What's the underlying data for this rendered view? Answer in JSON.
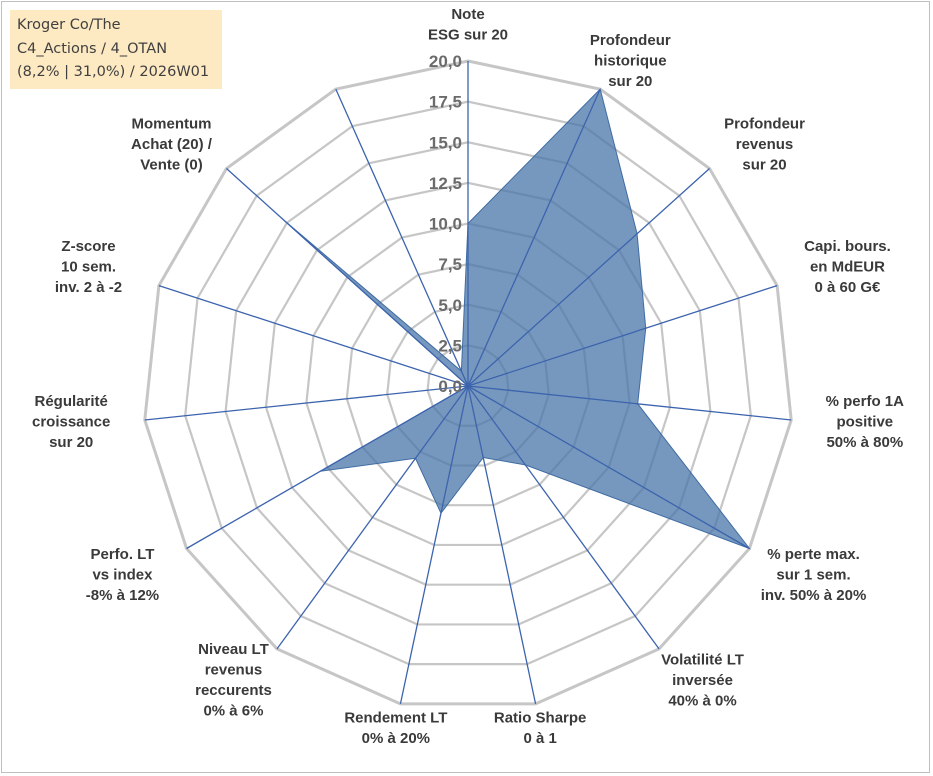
{
  "info": {
    "company": "Kroger Co/The",
    "portfolio": "C4_Actions / 4_OTAN",
    "stats": "(8,2% | 31,0%) / 2026W01"
  },
  "chart_data": {
    "type": "radar",
    "title": "",
    "rmin": 0,
    "rmax": 20,
    "tick_step": 2.5,
    "tick_labels": [
      "0,0",
      "2,5",
      "5,0",
      "7,5",
      "10,0",
      "12,5",
      "15,0",
      "17,5",
      "20,0"
    ],
    "series": [
      {
        "name": "Kroger Co/The",
        "color": "#4a76a8",
        "values": [
          10.0,
          20.0,
          14.0,
          11.5,
          10.5,
          20.0,
          6.0,
          4.5,
          8.0,
          5.5,
          10.5,
          0.0,
          0.0,
          15.5,
          1.0
        ]
      }
    ],
    "axes": [
      {
        "lines": [
          "Note",
          "ESG sur 20"
        ]
      },
      {
        "lines": [
          "Profondeur",
          "historique",
          "sur 20"
        ]
      },
      {
        "lines": [
          "Profondeur",
          "revenus",
          "sur 20"
        ]
      },
      {
        "lines": [
          "Capi. bours.",
          "en MdEUR",
          "0 à 60 G€"
        ]
      },
      {
        "lines": [
          "% perfo 1A",
          "positive",
          "50% à 80%"
        ]
      },
      {
        "lines": [
          "% perte max.",
          "sur 1 sem.",
          "inv. 50% à 20%"
        ]
      },
      {
        "lines": [
          "Volatilité LT",
          "inversée",
          "40% à 0%"
        ]
      },
      {
        "lines": [
          "Ratio Sharpe",
          "0 à 1"
        ]
      },
      {
        "lines": [
          "Rendement LT",
          "0% à 20%"
        ]
      },
      {
        "lines": [
          "Niveau LT",
          "revenus",
          "reccurents",
          "0% à 6%"
        ]
      },
      {
        "lines": [
          "Perfo. LT",
          "vs index",
          "-8% à 12%"
        ]
      },
      {
        "lines": [
          "Régularité",
          "croissance",
          "sur 20"
        ]
      },
      {
        "lines": [
          "Z-score",
          "10 sem.",
          "inv. 2 à -2"
        ]
      },
      {
        "lines": [
          "Momentum",
          "Achat (20) /",
          "Vente (0)"
        ]
      },
      {
        "lines": [
          "",
          ""
        ]
      }
    ]
  }
}
